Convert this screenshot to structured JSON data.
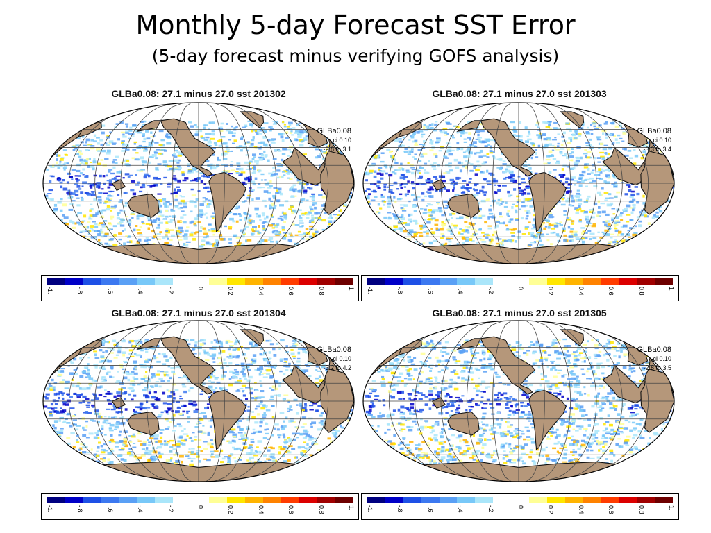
{
  "title": "Monthly 5-day Forecast SST Error",
  "subtitle": "(5-day forecast minus verifying GOFS analysis)",
  "colors": {
    "land": "#b5977a",
    "ocean": "#ffffff",
    "coast": "#111111",
    "grid": "#444444"
  },
  "colorbar": {
    "colors": [
      "#000080",
      "#0000c8",
      "#1e50e6",
      "#3c78f0",
      "#5aa0f5",
      "#78c8f8",
      "#aae6fa",
      "#ffffff",
      "#ffffff",
      "#ffff96",
      "#ffe600",
      "#ffb400",
      "#ff8200",
      "#ff3c00",
      "#dc0000",
      "#a00000",
      "#6e0000"
    ],
    "labels": [
      "-1.",
      "-.8",
      "-.6",
      "-.4",
      "-.2",
      "0.",
      "0.2",
      "0.4",
      "0.6",
      "0.8",
      "1."
    ]
  },
  "panels": [
    {
      "title": "GLBa0.08: 27.1 minus 27.0 sst 201302",
      "model": "GLBa0.08",
      "ci": "ci 0.10",
      "range": "-2.8 to 3.1"
    },
    {
      "title": "GLBa0.08: 27.1 minus 27.0 sst 201303",
      "model": "GLBa0.08",
      "ci": "ci 0.10",
      "range": "-3.3 to 3.4"
    },
    {
      "title": "GLBa0.08: 27.1 minus 27.0 sst 201304",
      "model": "GLBa0.08",
      "ci": "ci 0.10",
      "range": "-3.2 to 4.2"
    },
    {
      "title": "GLBa0.08: 27.1 minus 27.0 sst 201305",
      "model": "GLBa0.08",
      "ci": "ci 0.10",
      "range": "-2.8 to 3.5"
    }
  ]
}
